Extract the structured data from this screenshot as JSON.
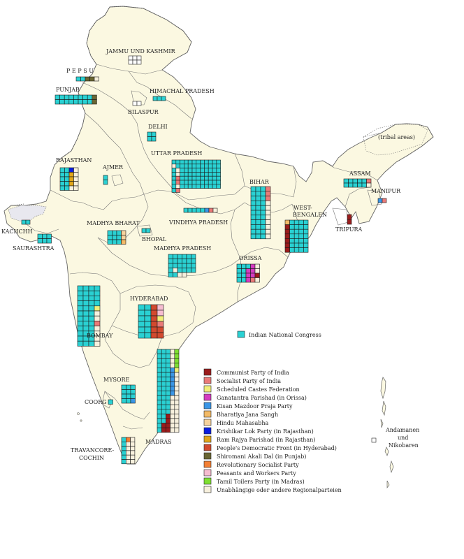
{
  "colors": {
    "land": "#fbf8e1",
    "border": "#777777",
    "intl_border": "#555555",
    "INC": "#2ad1d3",
    "CPI": "#9b1c1c",
    "SOC": "#ea7a78",
    "SCF": "#f1ef7a",
    "GP": "#d43cc0",
    "KMPP": "#3a96e6",
    "BJS": "#f2ba67",
    "HM": "#f6d39d",
    "KLP": "#0a1ee0",
    "RRP": "#e0a61a",
    "PDF": "#d24a2f",
    "SAD": "#6a6633",
    "RSP": "#f27f34",
    "PWP": "#f6bcd0",
    "TTP": "#7fe032",
    "OTH": "#f7f0dd"
  },
  "map": {
    "state_labels": [
      "JAMMU UND KASHMIR",
      "P E P S U",
      "PUNJAB",
      "HIMACHAL PRADESH",
      "BILASPUR",
      "DELHI",
      "UTTAR PRADESH",
      "RAJASTHAN",
      "AJMER",
      "BIHAR",
      "ASSAM",
      "MANIPUR",
      "(tribal areas)",
      "WEST-",
      "BENGALEN",
      "TRIPURA",
      "KACHCHH",
      "SAURASHTRA",
      "MADHYA BHARAT",
      "VINDHYA PRADESH",
      "BHOPAL",
      "MADHYA PRADESH",
      "ORISSA",
      "BOMBAY",
      "HYDERABAD",
      "MYSORE",
      "COORG",
      "TRAVANCORE-",
      "COCHIN",
      "MADRAS",
      "Andamanen",
      "und",
      "Nikobaren"
    ]
  },
  "seat_blocks": {
    "jammu_kashmir": [],
    "pepsu": [
      "INC",
      "INC",
      "SAD",
      "SAD",
      "OTH"
    ],
    "punjab": [
      "INC",
      "INC",
      "INC",
      "INC",
      "INC",
      "INC",
      "INC",
      "INC",
      "SAD",
      "INC",
      "INC",
      "INC",
      "INC",
      "INC",
      "INC",
      "INC",
      "INC",
      "SAD"
    ],
    "himachal": [
      "INC",
      "INC",
      "INC"
    ],
    "bilaspur": [],
    "delhi": [
      "INC",
      "INC",
      "INC",
      "INC"
    ],
    "uttar_pradesh": [
      "INC",
      "INC",
      "INC",
      "INC",
      "INC",
      "INC",
      "INC",
      "INC",
      "INC",
      "INC",
      "INC",
      "INC",
      "OTH",
      "INC",
      "INC",
      "INC",
      "INC",
      "INC",
      "INC",
      "INC",
      "INC",
      "INC",
      "INC",
      "INC",
      "INC",
      "OTH",
      "INC",
      "INC",
      "INC",
      "INC",
      "INC",
      "INC",
      "INC",
      "INC",
      "INC",
      "INC",
      "INC",
      "OTH",
      "INC",
      "INC",
      "INC",
      "INC",
      "INC",
      "INC",
      "INC",
      "INC",
      "INC",
      "INC",
      "INC",
      "SOC",
      "INC",
      "INC",
      "INC",
      "INC",
      "INC",
      "INC",
      "INC",
      "INC",
      "INC",
      "INC",
      "INC",
      "SOC",
      "INC",
      "INC",
      "INC",
      "INC",
      "INC",
      "INC",
      "INC",
      "INC",
      "INC",
      "INC",
      "INC",
      "OTH",
      "INC",
      "INC",
      "INC",
      "INC",
      "INC",
      "INC",
      "INC",
      "INC",
      "INC",
      "INC",
      "INC",
      "SOC"
    ],
    "rajasthan": [
      "INC",
      "INC",
      "KLP",
      "OTH",
      "INC",
      "INC",
      "RRP",
      "OTH",
      "INC",
      "INC",
      "RRP",
      "OTH",
      "INC",
      "INC",
      "RRP",
      "OTH",
      "INC",
      "INC",
      "OTH",
      "OTH"
    ],
    "ajmer": [
      "INC",
      "INC"
    ],
    "bihar": [
      "INC",
      "INC",
      "INC",
      "SOC",
      "INC",
      "INC",
      "INC",
      "SOC",
      "INC",
      "INC",
      "INC",
      "SOC",
      "INC",
      "INC",
      "INC",
      "OTH",
      "INC",
      "INC",
      "INC",
      "OTH",
      "INC",
      "INC",
      "INC",
      "OTH",
      "INC",
      "INC",
      "INC",
      "OTH",
      "INC",
      "INC",
      "INC",
      "OTH",
      "INC",
      "INC",
      "INC",
      "OTH",
      "INC",
      "INC",
      "INC",
      "OTH",
      "INC",
      "INC",
      "INC",
      "OTH"
    ],
    "assam": [
      "INC",
      "INC",
      "INC",
      "INC",
      "INC",
      "SOC",
      "INC",
      "INC",
      "INC",
      "INC",
      "INC",
      "OTH"
    ],
    "manipur": [
      "KMPP",
      "SOC"
    ],
    "tripura": [
      "CPI",
      "CPI"
    ],
    "west_bengal": [
      "BJS",
      "INC",
      "INC",
      "INC",
      "INC",
      "CPI",
      "INC",
      "INC",
      "INC",
      "INC",
      "CPI",
      "INC",
      "INC",
      "INC",
      "INC",
      "CPI",
      "INC",
      "INC",
      "INC",
      "INC",
      "CPI",
      "INC",
      "INC",
      "INC",
      "INC",
      "CPI",
      "INC",
      "INC",
      "INC",
      "INC",
      "CPI",
      "INC",
      "INC",
      "INC",
      "INC"
    ],
    "kachchh": [
      "INC",
      "INC"
    ],
    "saurashtra": [
      "INC",
      "INC",
      "INC",
      "INC",
      "INC",
      "INC"
    ],
    "madhya_bharat": [
      "INC",
      "INC",
      "INC",
      "HM",
      "INC",
      "INC",
      "INC",
      "HM",
      "INC",
      "INC",
      "INC",
      "BJS"
    ],
    "vindhya_pradesh": [
      "INC",
      "INC",
      "INC",
      "INC",
      "INC",
      "KMPP",
      "SOC",
      "OTH"
    ],
    "bhopal": [
      "INC",
      "INC"
    ],
    "madhya_pradesh": [
      "INC",
      "INC",
      "INC",
      "INC",
      "INC",
      "INC",
      "INC",
      "INC",
      "INC",
      "INC",
      "INC",
      "INC",
      "INC",
      "INC",
      "INC",
      "INC",
      "INC",
      "INC",
      "INC",
      "OTH",
      "INC",
      "INC",
      "INC",
      "INC",
      "INC",
      "INC",
      "OTH",
      "OTH"
    ],
    "orissa": [
      "INC",
      "INC",
      "INC",
      "GP",
      "OTH",
      "INC",
      "INC",
      "GP",
      "GP",
      "OTH",
      "INC",
      "INC",
      "GP",
      "GP",
      "CPI",
      "INC",
      "INC",
      "GP",
      "SOC",
      "OTH"
    ],
    "bombay": [
      "INC",
      "INC",
      "INC",
      "INC",
      "INC",
      "INC",
      "INC",
      "INC",
      "INC",
      "INC",
      "INC",
      "INC",
      "INC",
      "INC",
      "INC",
      "INC",
      "INC",
      "INC",
      "INC",
      "SCF",
      "INC",
      "INC",
      "INC",
      "OTH",
      "INC",
      "INC",
      "INC",
      "OTH",
      "INC",
      "INC",
      "INC",
      "SOC",
      "INC",
      "INC",
      "INC",
      "OTH",
      "INC",
      "INC",
      "INC",
      "OTH",
      "INC",
      "INC",
      "INC",
      "OTH",
      "INC",
      "INC",
      "INC",
      "OTH"
    ],
    "hyderabad": [
      "INC",
      "INC",
      "PDF",
      "PWP",
      "INC",
      "INC",
      "PDF",
      "PWP",
      "INC",
      "INC",
      "PDF",
      "SCF",
      "INC",
      "INC",
      "PDF",
      "SOC",
      "INC",
      "INC",
      "PDF",
      "PDF",
      "INC",
      "INC",
      "PDF",
      "PDF"
    ],
    "mysore": [
      "INC",
      "INC",
      "INC",
      "INC",
      "INC",
      "INC",
      "INC",
      "INC",
      "INC",
      "INC",
      "INC",
      "KMPP"
    ],
    "coorg": [
      "INC"
    ],
    "travancore": [
      "INC",
      "RSP",
      "OTH",
      "INC",
      "OTH",
      "OTH",
      "INC",
      "OTH",
      "OTH",
      "INC",
      "OTH",
      "OTH",
      "INC",
      "OTH",
      "OTH",
      "INC",
      "OTH",
      "OTH"
    ],
    "madras": [
      "INC",
      "INC",
      "INC",
      "OTH",
      "TTP",
      "INC",
      "INC",
      "INC",
      "OTH",
      "TTP",
      "INC",
      "INC",
      "INC",
      "OTH",
      "TTP",
      "INC",
      "INC",
      "INC",
      "OTH",
      "TTP",
      "INC",
      "INC",
      "INC",
      "KMPP",
      "SCF",
      "INC",
      "INC",
      "INC",
      "KMPP",
      "OTH",
      "INC",
      "INC",
      "INC",
      "KMPP",
      "OTH",
      "INC",
      "INC",
      "INC",
      "KMPP",
      "OTH",
      "INC",
      "INC",
      "INC",
      "KMPP",
      "OTH",
      "INC",
      "INC",
      "INC",
      "KMPP",
      "OTH",
      "INC",
      "INC",
      "INC",
      "OTH",
      "OTH",
      "INC",
      "INC",
      "INC",
      "OTH",
      "OTH",
      "INC",
      "INC",
      "INC",
      "OTH",
      "OTH",
      "INC",
      "INC",
      "INC",
      "OTH",
      "OTH",
      "INC",
      "INC",
      "CPI",
      "OTH",
      "OTH",
      "INC",
      "INC",
      "CPI",
      "OTH",
      "OTH",
      "INC",
      "CPI",
      "CPI",
      "OTH",
      "OTH",
      "INC",
      "CPI",
      "CPI",
      "OTH",
      "OTH"
    ]
  },
  "legend": {
    "inc_label": "Indian National Congress",
    "items": [
      {
        "key": "CPI",
        "label": "Communist Party of India"
      },
      {
        "key": "SOC",
        "label": "Socialist Party of India"
      },
      {
        "key": "SCF",
        "label": "Scheduled Castes Federation"
      },
      {
        "key": "GP",
        "label": "Ganatantra Parishad (in Orissa)"
      },
      {
        "key": "KMPP",
        "label": "Kisan Mazdoor Praja Party"
      },
      {
        "key": "BJS",
        "label": "Bharatiya Jana Sangh"
      },
      {
        "key": "HM",
        "label": "Hindu Mahasabha"
      },
      {
        "key": "KLP",
        "label": "Krishikar Lok Party (in Rajasthan)"
      },
      {
        "key": "RRP",
        "label": "Ram Rajya Parishad (in Rajasthan)"
      },
      {
        "key": "PDF",
        "label": "People's Democratic Front (in Hyderabad)"
      },
      {
        "key": "SAD",
        "label": "Shiromani Akali Dal (in Punjab)"
      },
      {
        "key": "RSP",
        "label": "Revolutionary Socialist Party"
      },
      {
        "key": "PWP",
        "label": "Peasants and Workers Party"
      },
      {
        "key": "TTP",
        "label": "Tamil Toilers Party (in Madras)"
      },
      {
        "key": "OTH",
        "label": "Unabhängige oder andere Regionalparteien"
      }
    ]
  }
}
